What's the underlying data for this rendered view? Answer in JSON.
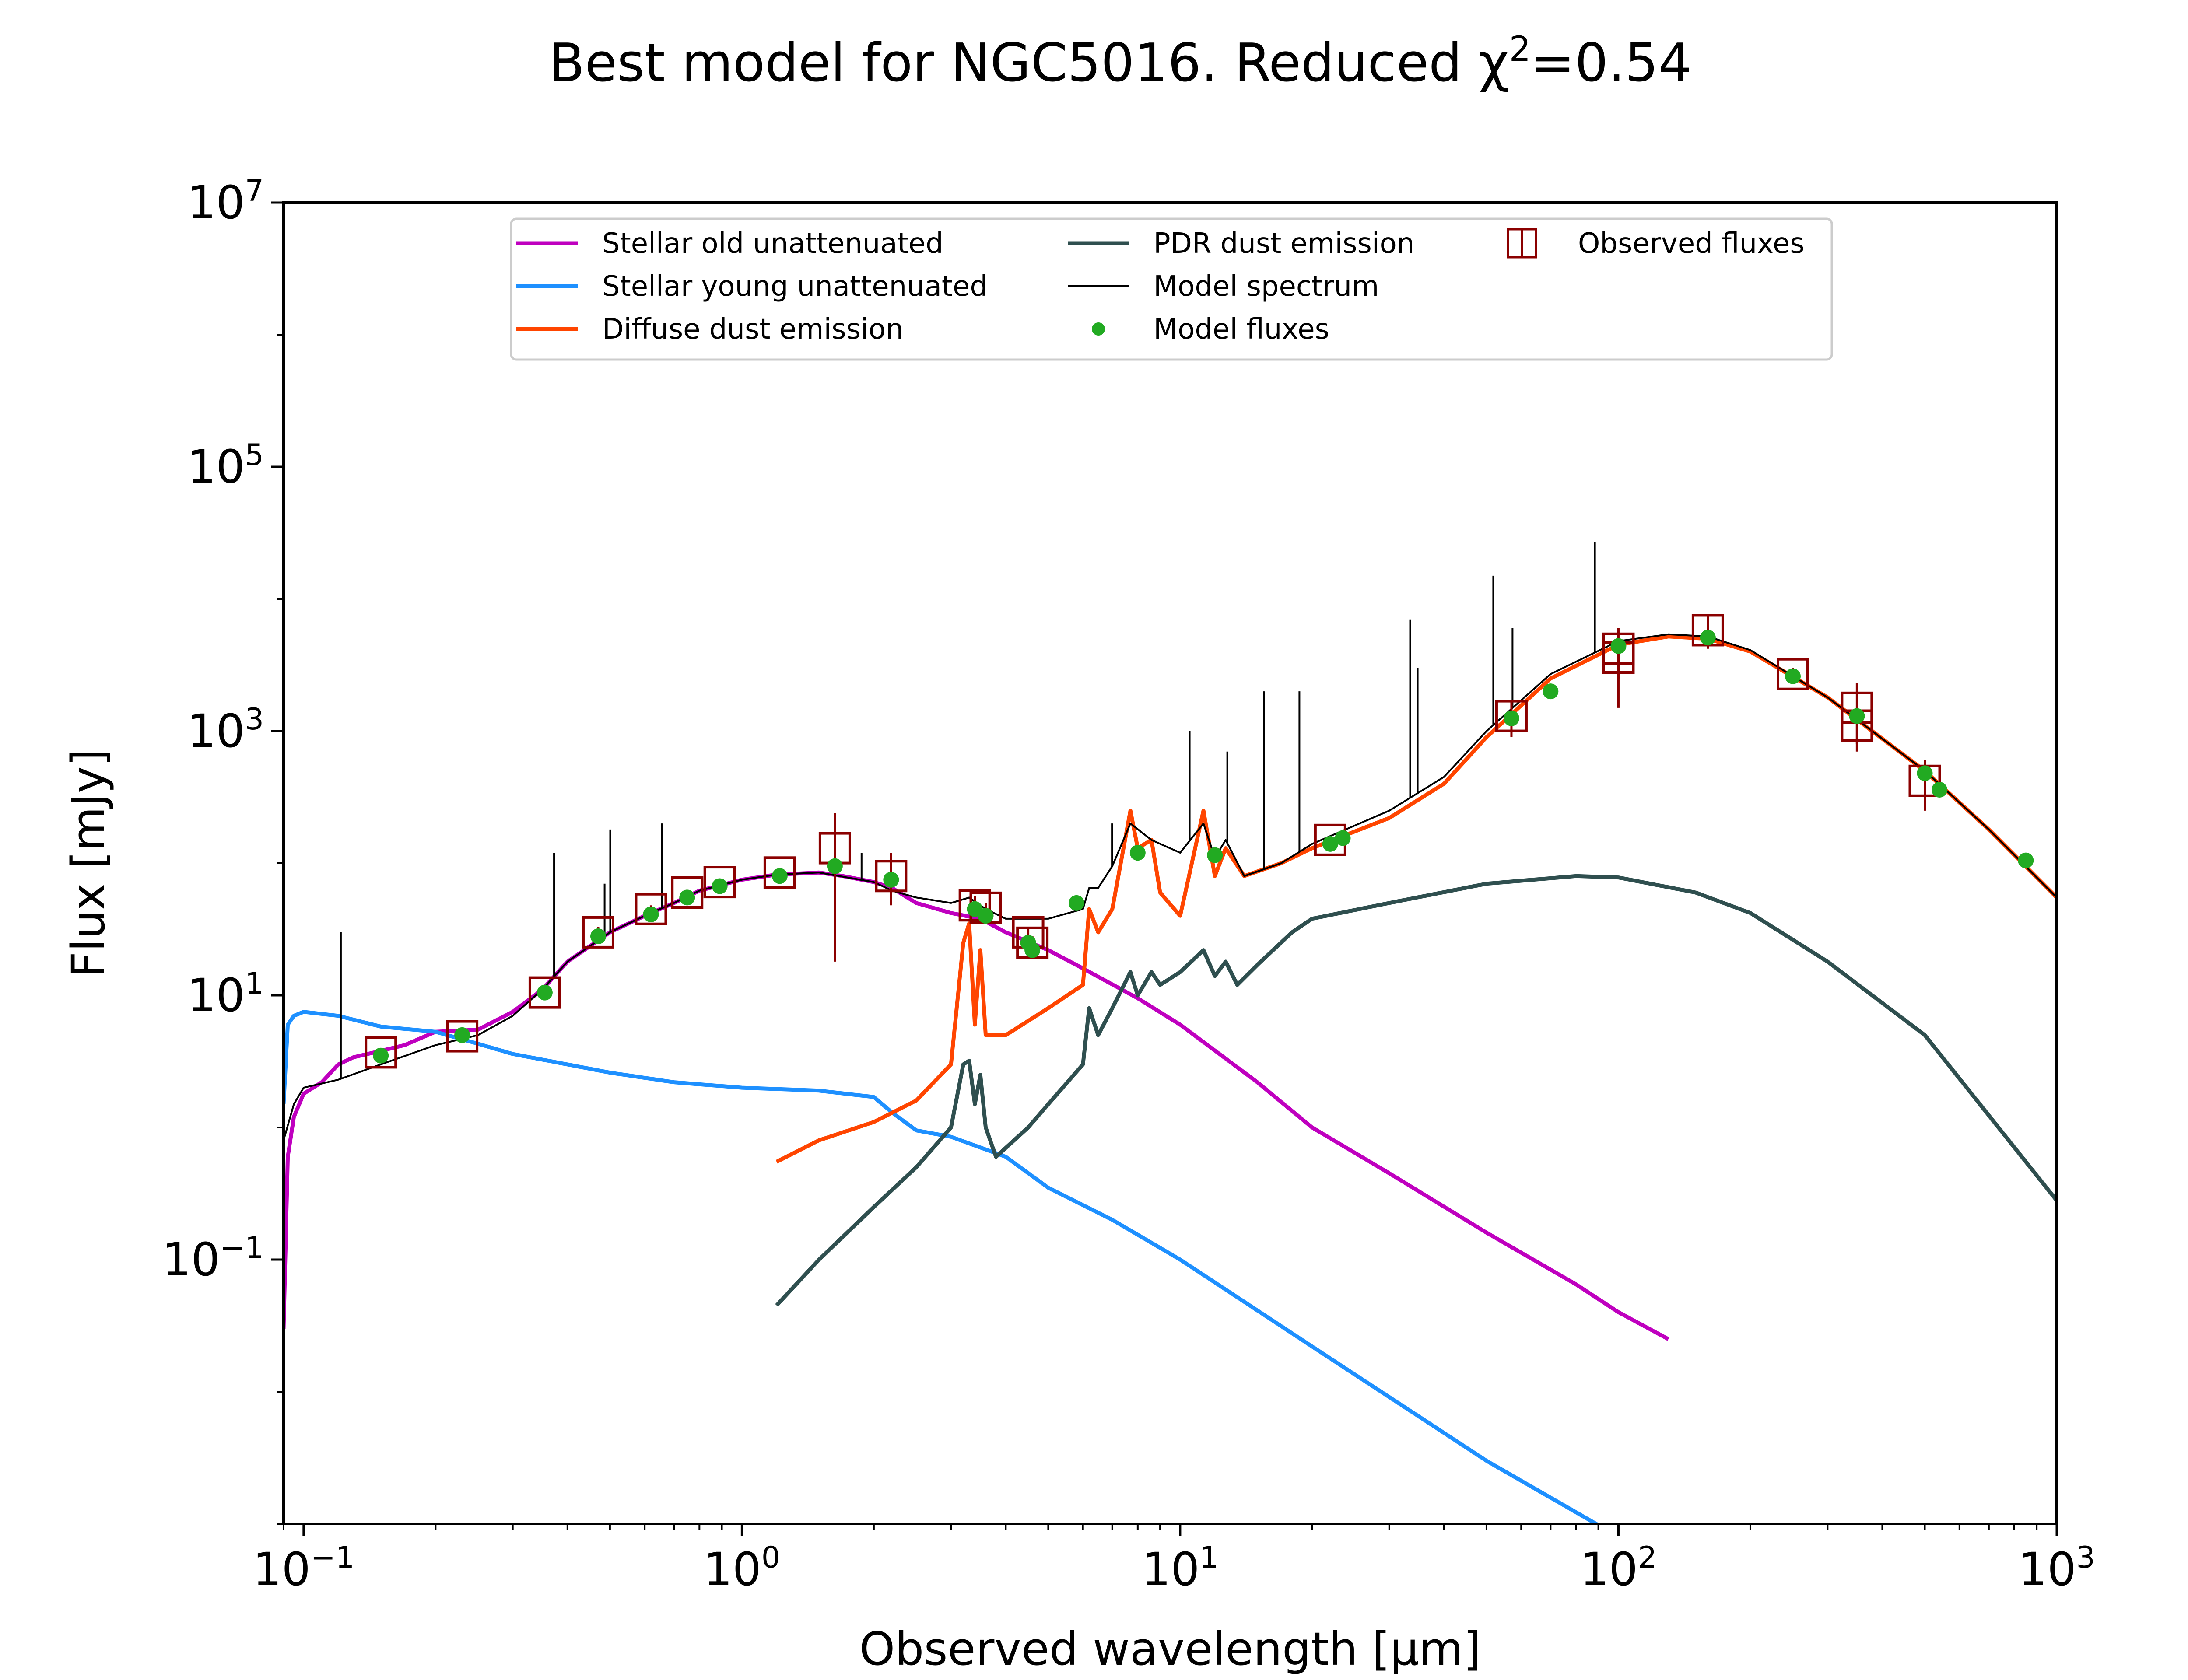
{
  "chart_data": {
    "type": "line",
    "title": "Best model for NGC5016. Reduced χ²=0.54",
    "xlabel": "Observed wavelength [μm]",
    "ylabel": "Flux [mJy]",
    "x_scale": "log",
    "y_scale": "log",
    "xlim": [
      0.09,
      1000
    ],
    "ylim": [
      0.001,
      10000000
    ],
    "x_ticks": [
      {
        "value": 0.1,
        "base": "10",
        "exp": "−1"
      },
      {
        "value": 1,
        "base": "10",
        "exp": "0"
      },
      {
        "value": 10,
        "base": "10",
        "exp": "1"
      },
      {
        "value": 100,
        "base": "10",
        "exp": "2"
      },
      {
        "value": 1000,
        "base": "10",
        "exp": "3"
      }
    ],
    "y_ticks": [
      {
        "value": 0.1,
        "base": "10",
        "exp": "−1"
      },
      {
        "value": 10,
        "base": "10",
        "exp": "1"
      },
      {
        "value": 1000,
        "base": "10",
        "exp": "3"
      },
      {
        "value": 100000,
        "base": "10",
        "exp": "5"
      },
      {
        "value": 10000000,
        "base": "10",
        "exp": "7"
      }
    ],
    "legend_position": "top-center",
    "legend": [
      {
        "label": "Stellar old unattenuated",
        "key": "stellar_old",
        "kind": "line"
      },
      {
        "label": "Stellar young unattenuated",
        "key": "stellar_young",
        "kind": "line"
      },
      {
        "label": "Diffuse dust emission",
        "key": "diffuse_dust",
        "kind": "line"
      },
      {
        "label": "PDR dust emission",
        "key": "pdr_dust",
        "kind": "line"
      },
      {
        "label": "Model spectrum",
        "key": "model_spectrum",
        "kind": "thinline"
      },
      {
        "label": "Model fluxes",
        "key": "model_fluxes",
        "kind": "dot"
      },
      {
        "label": "Observed fluxes",
        "key": "observed_fluxes",
        "kind": "errbox"
      }
    ],
    "colors": {
      "stellar_old": "#bf00bf",
      "stellar_young": "#1e90ff",
      "diffuse_dust": "#ff4500",
      "pdr_dust": "#2f4f4f",
      "model_spectrum": "#000000",
      "model_fluxes": "#22aa22",
      "observed_fluxes": "#8b0000"
    },
    "series": [
      {
        "key": "stellar_old",
        "x": [
          0.09,
          0.092,
          0.095,
          0.1,
          0.11,
          0.12,
          0.13,
          0.15,
          0.17,
          0.2,
          0.25,
          0.3,
          0.35,
          0.4,
          0.5,
          0.6,
          0.7,
          0.8,
          1.0,
          1.2,
          1.5,
          1.7,
          2.0,
          2.2,
          2.5,
          3.0,
          3.5,
          4.0,
          5.0,
          6.0,
          8.0,
          10.0,
          15.0,
          20.0,
          30.0,
          50.0,
          80.0,
          100.0,
          130.0
        ],
        "y": [
          0.03,
          0.6,
          1.2,
          1.8,
          2.2,
          3.0,
          3.4,
          3.8,
          4.2,
          5.3,
          5.5,
          7.5,
          11.0,
          18.0,
          30.0,
          40.0,
          50.0,
          62.0,
          75.0,
          82.0,
          85.0,
          80.0,
          72.0,
          65.0,
          50.0,
          42.0,
          38.0,
          30.0,
          22.0,
          16.0,
          9.5,
          6.0,
          2.2,
          1.0,
          0.45,
          0.16,
          0.065,
          0.04,
          0.025
        ]
      },
      {
        "key": "stellar_young",
        "x": [
          0.09,
          0.092,
          0.095,
          0.1,
          0.12,
          0.15,
          0.2,
          0.25,
          0.3,
          0.4,
          0.5,
          0.7,
          1.0,
          1.5,
          2.0,
          2.2,
          2.5,
          3.0,
          4.0,
          5.0,
          7.0,
          10.0,
          20.0,
          50.0,
          100.0
        ],
        "y": [
          1.5,
          6.0,
          7.0,
          7.5,
          7.0,
          5.8,
          5.3,
          4.3,
          3.6,
          3.0,
          2.6,
          2.2,
          2.0,
          1.9,
          1.7,
          1.3,
          0.95,
          0.85,
          0.6,
          0.35,
          0.2,
          0.1,
          0.022,
          0.003,
          0.0008
        ]
      },
      {
        "key": "diffuse_dust",
        "x": [
          1.2,
          1.5,
          2.0,
          2.5,
          3.0,
          3.2,
          3.3,
          3.4,
          3.5,
          3.6,
          4.0,
          5.0,
          6.0,
          6.2,
          6.5,
          7.0,
          7.7,
          8.0,
          8.6,
          9.0,
          10.0,
          11.3,
          12.0,
          12.7,
          14.0,
          17.0,
          20.0,
          30.0,
          40.0,
          50.0,
          70.0,
          100.0,
          130.0,
          160.0,
          200.0,
          300.0,
          500.0,
          700.0,
          1000.0
        ],
        "y": [
          0.55,
          0.8,
          1.1,
          1.6,
          3.0,
          25.0,
          35.0,
          6.0,
          22.0,
          5.0,
          5.0,
          8.0,
          12.0,
          45.0,
          30.0,
          45.0,
          250.0,
          130.0,
          150.0,
          60.0,
          40.0,
          250.0,
          80.0,
          130.0,
          80.0,
          100.0,
          130.0,
          220.0,
          400.0,
          900.0,
          2500.0,
          4500.0,
          5200.0,
          5000.0,
          4000.0,
          1800.0,
          500.0,
          180.0,
          55.0
        ]
      },
      {
        "key": "pdr_dust",
        "x": [
          1.2,
          1.5,
          2.0,
          2.5,
          3.0,
          3.2,
          3.3,
          3.4,
          3.5,
          3.6,
          3.8,
          4.5,
          5.0,
          6.0,
          6.2,
          6.5,
          7.0,
          7.7,
          8.0,
          8.6,
          9.0,
          10.0,
          11.3,
          12.0,
          12.7,
          13.5,
          15.0,
          18.0,
          20.0,
          30.0,
          50.0,
          80.0,
          100.0,
          150.0,
          200.0,
          300.0,
          500.0,
          1000.0
        ],
        "y": [
          0.045,
          0.1,
          0.25,
          0.5,
          1.0,
          3.0,
          3.2,
          1.5,
          2.5,
          1.0,
          0.6,
          1.0,
          1.5,
          3.0,
          8.0,
          5.0,
          8.0,
          15.0,
          10.0,
          15.0,
          12.0,
          15.0,
          22.0,
          14.0,
          18.0,
          12.0,
          17.0,
          30.0,
          38.0,
          50.0,
          70.0,
          80.0,
          78.0,
          60.0,
          42.0,
          18.0,
          5.0,
          0.28
        ]
      },
      {
        "key": "model_spectrum",
        "x": [
          0.09,
          0.095,
          0.1,
          0.12,
          0.15,
          0.2,
          0.25,
          0.3,
          0.35,
          0.4,
          0.5,
          0.6,
          0.7,
          0.8,
          1.0,
          1.2,
          1.5,
          2.0,
          2.2,
          2.5,
          3.0,
          3.3,
          3.6,
          4.0,
          5.0,
          6.0,
          6.2,
          6.5,
          7.0,
          7.7,
          8.6,
          10.0,
          11.3,
          12.0,
          12.7,
          14.0,
          17.0,
          20.0,
          30.0,
          40.0,
          50.0,
          70.0,
          100.0,
          130.0,
          160.0,
          200.0,
          300.0,
          500.0,
          700.0,
          1000.0
        ],
        "y": [
          0.8,
          1.5,
          2.0,
          2.3,
          3.0,
          4.2,
          5.0,
          7.0,
          11.0,
          18.0,
          30.0,
          40.0,
          50.0,
          62.0,
          75.0,
          82.0,
          85.0,
          72.0,
          62.0,
          55.0,
          50.0,
          55.0,
          45.0,
          38.0,
          38.0,
          45.0,
          65.0,
          65.0,
          95.0,
          200.0,
          150.0,
          120.0,
          200.0,
          110.0,
          150.0,
          80.0,
          100.0,
          140.0,
          250.0,
          450.0,
          1000.0,
          2700.0,
          4800.0,
          5400.0,
          5200.0,
          4100.0,
          1800.0,
          500.0,
          180.0,
          55.0
        ]
      }
    ],
    "emission_lines": [
      {
        "x": 0.1216,
        "peak": 30.0
      },
      {
        "x": 0.3727,
        "peak": 120.0
      },
      {
        "x": 0.4861,
        "peak": 70.0
      },
      {
        "x": 0.5007,
        "peak": 180.0
      },
      {
        "x": 0.6563,
        "peak": 200.0
      },
      {
        "x": 1.875,
        "peak": 120.0
      },
      {
        "x": 6.99,
        "peak": 200.0
      },
      {
        "x": 10.51,
        "peak": 1000.0
      },
      {
        "x": 12.81,
        "peak": 700.0
      },
      {
        "x": 15.55,
        "peak": 2000.0
      },
      {
        "x": 18.71,
        "peak": 2000.0
      },
      {
        "x": 33.48,
        "peak": 7000.0
      },
      {
        "x": 34.82,
        "peak": 3000.0
      },
      {
        "x": 51.81,
        "peak": 15000.0
      },
      {
        "x": 57.32,
        "peak": 6000.0
      },
      {
        "x": 88.36,
        "peak": 27000.0
      }
    ],
    "model_fluxes": {
      "x": [
        0.15,
        0.23,
        0.355,
        0.47,
        0.62,
        0.75,
        0.89,
        1.22,
        1.63,
        2.19,
        3.4,
        3.6,
        4.5,
        4.6,
        5.8,
        8.0,
        12.0,
        22.0,
        23.5,
        57.0,
        70.0,
        100.0,
        160.0,
        250.0,
        350.0,
        500.0,
        540.0,
        850.0
      ],
      "y": [
        3.5,
        5.0,
        10.5,
        28.0,
        41.0,
        55.0,
        67.0,
        80.0,
        95.0,
        75.0,
        45.0,
        40.0,
        25.0,
        22.0,
        50.0,
        120.0,
        115.0,
        140.0,
        155.0,
        1250.0,
        2000.0,
        4400.0,
        5100.0,
        2600.0,
        1300.0,
        480.0,
        360.0,
        105.0
      ]
    },
    "observed_fluxes": {
      "x": [
        0.15,
        0.23,
        0.355,
        0.47,
        0.62,
        0.75,
        0.89,
        1.22,
        1.63,
        2.19,
        3.4,
        3.6,
        4.5,
        4.6,
        22.0,
        57.0,
        100.0,
        100.0,
        160.0,
        250.0,
        350.0,
        350.0,
        500.0
      ],
      "y": [
        3.7,
        4.9,
        10.5,
        30.0,
        45.0,
        60.0,
        72.0,
        85.0,
        130.0,
        80.0,
        48.0,
        46.0,
        30.0,
        25.0,
        150.0,
        1300.0,
        4200.0,
        3600.0,
        5800.0,
        2700.0,
        1500.0,
        1100.0,
        420.0
      ],
      "err_low": [
        3.4,
        4.7,
        10.0,
        27.0,
        42.0,
        57.0,
        68.0,
        82.0,
        18.0,
        48.0,
        40.0,
        42.0,
        27.0,
        22.0,
        140.0,
        900.0,
        1500.0,
        2500.0,
        4200.0,
        2400.0,
        700.0,
        800.0,
        250.0
      ],
      "err_high": [
        4.0,
        5.1,
        11.0,
        33.0,
        48.0,
        63.0,
        76.0,
        88.0,
        240.0,
        120.0,
        56.0,
        50.0,
        33.0,
        28.0,
        160.0,
        1700.0,
        6000.0,
        4700.0,
        7500.0,
        3000.0,
        2300.0,
        1400.0,
        600.0
      ]
    }
  }
}
